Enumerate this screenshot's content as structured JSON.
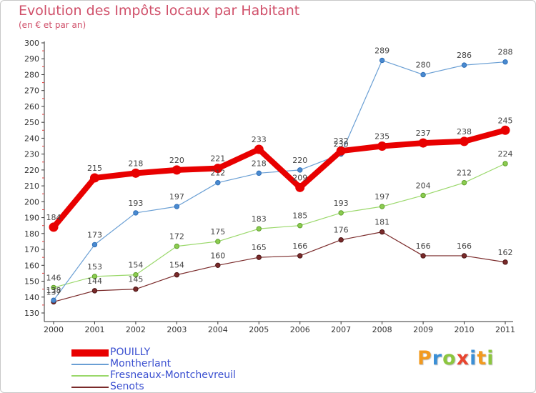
{
  "title": "Evolution des Impôts locaux par Habitant",
  "subtitle": "(en € et par an)",
  "brand": {
    "name": "Proxiti",
    "letters": [
      {
        "ch": "P",
        "color": "#f29a1f"
      },
      {
        "ch": "r",
        "color": "#3b8fd6"
      },
      {
        "ch": "o",
        "color": "#8cc63f"
      },
      {
        "ch": "x",
        "color": "#e8452f"
      },
      {
        "ch": "i",
        "color": "#3b8fd6"
      },
      {
        "ch": "t",
        "color": "#f29a1f"
      },
      {
        "ch": "i",
        "color": "#8cc63f"
      }
    ]
  },
  "chart_data": {
    "type": "line",
    "categories": [
      "2000",
      "2001",
      "2002",
      "2003",
      "2004",
      "2005",
      "2006",
      "2007",
      "2008",
      "2009",
      "2010",
      "2011"
    ],
    "ylim": [
      130,
      300
    ],
    "yticks": [
      "130",
      "140",
      "150",
      "160",
      "170",
      "180",
      "190",
      "200",
      "210",
      "220",
      "230",
      "240",
      "250",
      "260",
      "270",
      "280",
      "290",
      "300"
    ],
    "grid": false,
    "legend_position": "bottom-left",
    "series": [
      {
        "name": "POUILLY",
        "color": "#e80000",
        "values": [
          184,
          215,
          218,
          220,
          221,
          233,
          209,
          232,
          235,
          237,
          238,
          245
        ],
        "labels": [
          "184",
          "215",
          "218",
          "220",
          "221",
          "233",
          "209",
          "232",
          "235",
          "237",
          "238",
          "245"
        ]
      },
      {
        "name": "Montherlant",
        "color": "#6a9fd4",
        "values": [
          138,
          173,
          193,
          197,
          212,
          218,
          220,
          230,
          289,
          280,
          286,
          288
        ],
        "labels": [
          "138",
          "173",
          "193",
          "197",
          "212",
          "218",
          "220",
          "230",
          "289",
          "280",
          "286",
          "288"
        ]
      },
      {
        "name": "Fresneaux-Montchevreuil",
        "color": "#9ad86a",
        "values": [
          146,
          153,
          154,
          172,
          175,
          183,
          185,
          193,
          197,
          204,
          212,
          224
        ],
        "labels": [
          "146",
          "153",
          "154",
          "172",
          "175",
          "183",
          "185",
          "193",
          "197",
          "204",
          "212",
          "224"
        ]
      },
      {
        "name": "Senots",
        "color": "#7a2a2a",
        "values": [
          137,
          144,
          145,
          154,
          160,
          165,
          166,
          176,
          181,
          166,
          166,
          162
        ],
        "labels": [
          "137",
          "144",
          "145",
          "154",
          "160",
          "165",
          "166",
          "176",
          "181",
          "166",
          "166",
          "162"
        ]
      }
    ]
  }
}
